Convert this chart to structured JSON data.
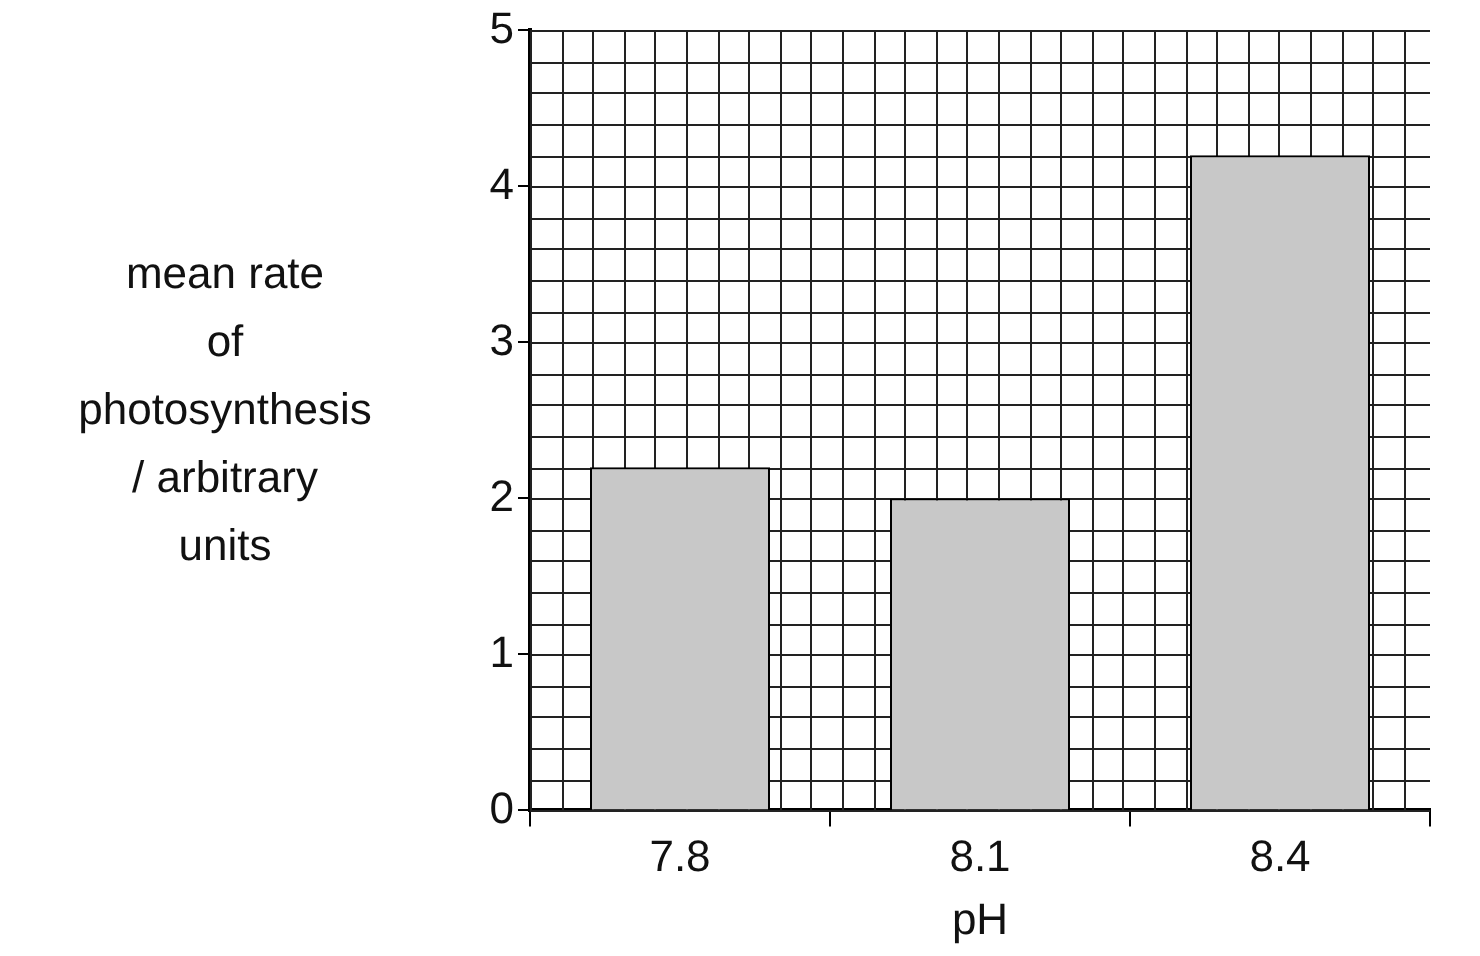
{
  "chart_data": {
    "type": "bar",
    "xlabel": "pH",
    "ylabel": "mean rate\nof\nphotosynthesis\n/ arbitrary\nunits",
    "categories": [
      "7.8",
      "8.1",
      "8.4"
    ],
    "values": [
      2.2,
      2.0,
      4.2
    ],
    "color": "#c8c8c8",
    "ylim": [
      0,
      5
    ],
    "yticks": [
      0,
      {
        "value": 0.2,
        "label": null
      },
      {
        "value": 0.4,
        "label": null
      },
      {
        "value": 0.6,
        "label": null
      },
      {
        "value": 0.8,
        "label": null
      },
      1,
      {
        "value": 1.2,
        "label": null
      },
      {
        "value": 1.4,
        "label": null
      },
      {
        "value": 1.6,
        "label": null
      },
      {
        "value": 1.8,
        "label": null
      },
      2,
      {
        "value": 2.2,
        "label": null
      },
      {
        "value": 2.4,
        "label": null
      },
      {
        "value": 2.6,
        "label": null
      },
      {
        "value": 2.8,
        "label": null
      },
      3,
      {
        "value": 3.2,
        "label": null
      },
      {
        "value": 3.4,
        "label": null
      },
      {
        "value": 3.6,
        "label": null
      },
      {
        "value": 3.8,
        "label": null
      },
      4,
      {
        "value": 4.2,
        "label": null
      },
      {
        "value": 4.4,
        "label": null
      },
      {
        "value": 4.6,
        "label": null
      },
      {
        "value": 4.8,
        "label": null
      },
      5
    ],
    "grid": true
  }
}
